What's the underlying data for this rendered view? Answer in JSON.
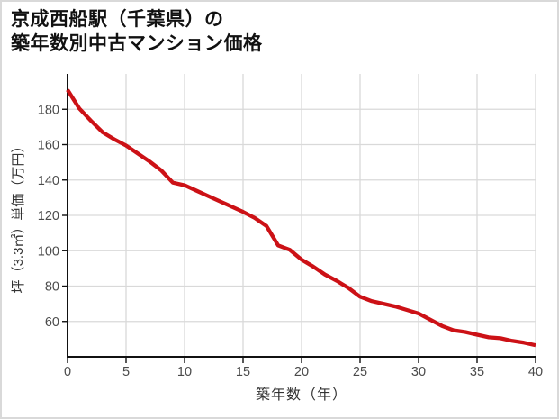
{
  "chart_data": {
    "type": "line",
    "title_line1": "京成西船駅（千葉県）の",
    "title_line2": "築年数別中古マンション価格",
    "xlabel": "築年数（年）",
    "ylabel": "坪（3.3㎡）単価（万円）",
    "x": [
      0,
      1,
      2,
      3,
      4,
      5,
      6,
      7,
      8,
      9,
      10,
      11,
      12,
      13,
      14,
      15,
      16,
      17,
      18,
      19,
      20,
      21,
      22,
      23,
      24,
      25,
      26,
      27,
      28,
      29,
      30,
      31,
      32,
      33,
      34,
      35,
      36,
      37,
      38,
      39,
      40
    ],
    "values": [
      191,
      180.5,
      173.5,
      167,
      163,
      159.5,
      155,
      150.5,
      145.5,
      138.5,
      137,
      134,
      131,
      128,
      125,
      122,
      118.5,
      114,
      103,
      100.5,
      95,
      91,
      86.5,
      83,
      79,
      74,
      71.5,
      70,
      68.5,
      66.5,
      64.5,
      61,
      57.5,
      55,
      54,
      52.5,
      51,
      50.5,
      49,
      48,
      46.5
    ],
    "xlim": [
      0,
      40
    ],
    "ylim": [
      40,
      200
    ],
    "xticks": [
      0,
      5,
      10,
      15,
      20,
      25,
      30,
      35,
      40
    ],
    "yticks": [
      60,
      80,
      100,
      120,
      140,
      160,
      180
    ],
    "grid": true,
    "legend_position": "none",
    "line_color": "#cc1116",
    "grid_color": "#d9d9d9",
    "axis_color": "#111111",
    "tick_label_color": "#4a4a4a",
    "background_color": "#ffffff",
    "border_color": "#d9d9d9"
  }
}
